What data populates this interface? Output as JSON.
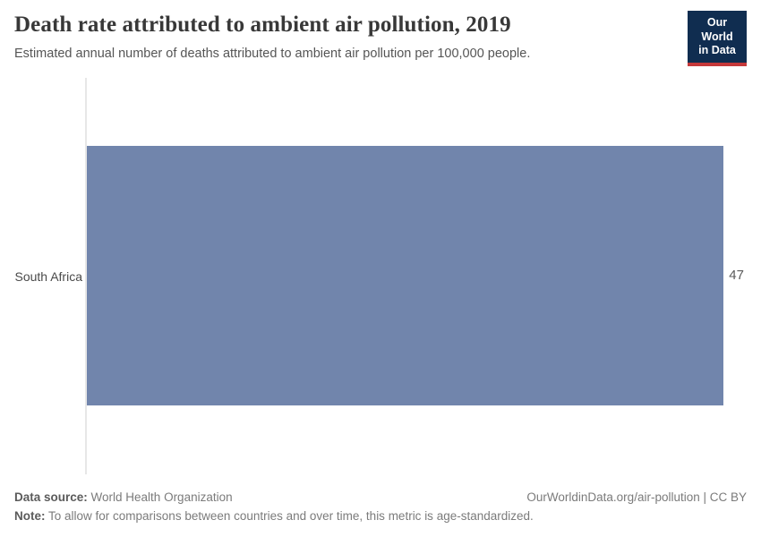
{
  "header": {
    "title": "Death rate attributed to ambient air pollution, 2019",
    "subtitle": "Estimated annual number of deaths attributed to ambient air pollution per 100,000 people.",
    "logo": {
      "line1": "Our World",
      "line2": "in Data"
    }
  },
  "chart_data": {
    "type": "bar",
    "orientation": "horizontal",
    "title": "Death rate attributed to ambient air pollution, 2019",
    "subtitle": "Estimated annual number of deaths attributed to ambient air pollution per 100,000 people.",
    "categories": [
      "South Africa"
    ],
    "values": [
      47
    ],
    "value_labels": [
      "47"
    ],
    "unit": "deaths per 100,000 people",
    "year": "2019",
    "xlim": [
      0,
      48.7
    ],
    "grid": false,
    "legend": false
  },
  "footer": {
    "data_source_label": "Data source:",
    "data_source_value": " World Health Organization",
    "attribution": "OurWorldinData.org/air-pollution | CC BY",
    "note_label": "Note:",
    "note_value": " To allow for comparisons between countries and over time, this metric is age-standardized."
  },
  "colors": {
    "bar": "#7185ac",
    "logo_background": "#102d50",
    "logo_accent": "#c5383a",
    "axis_line": "#e7e7e7"
  }
}
